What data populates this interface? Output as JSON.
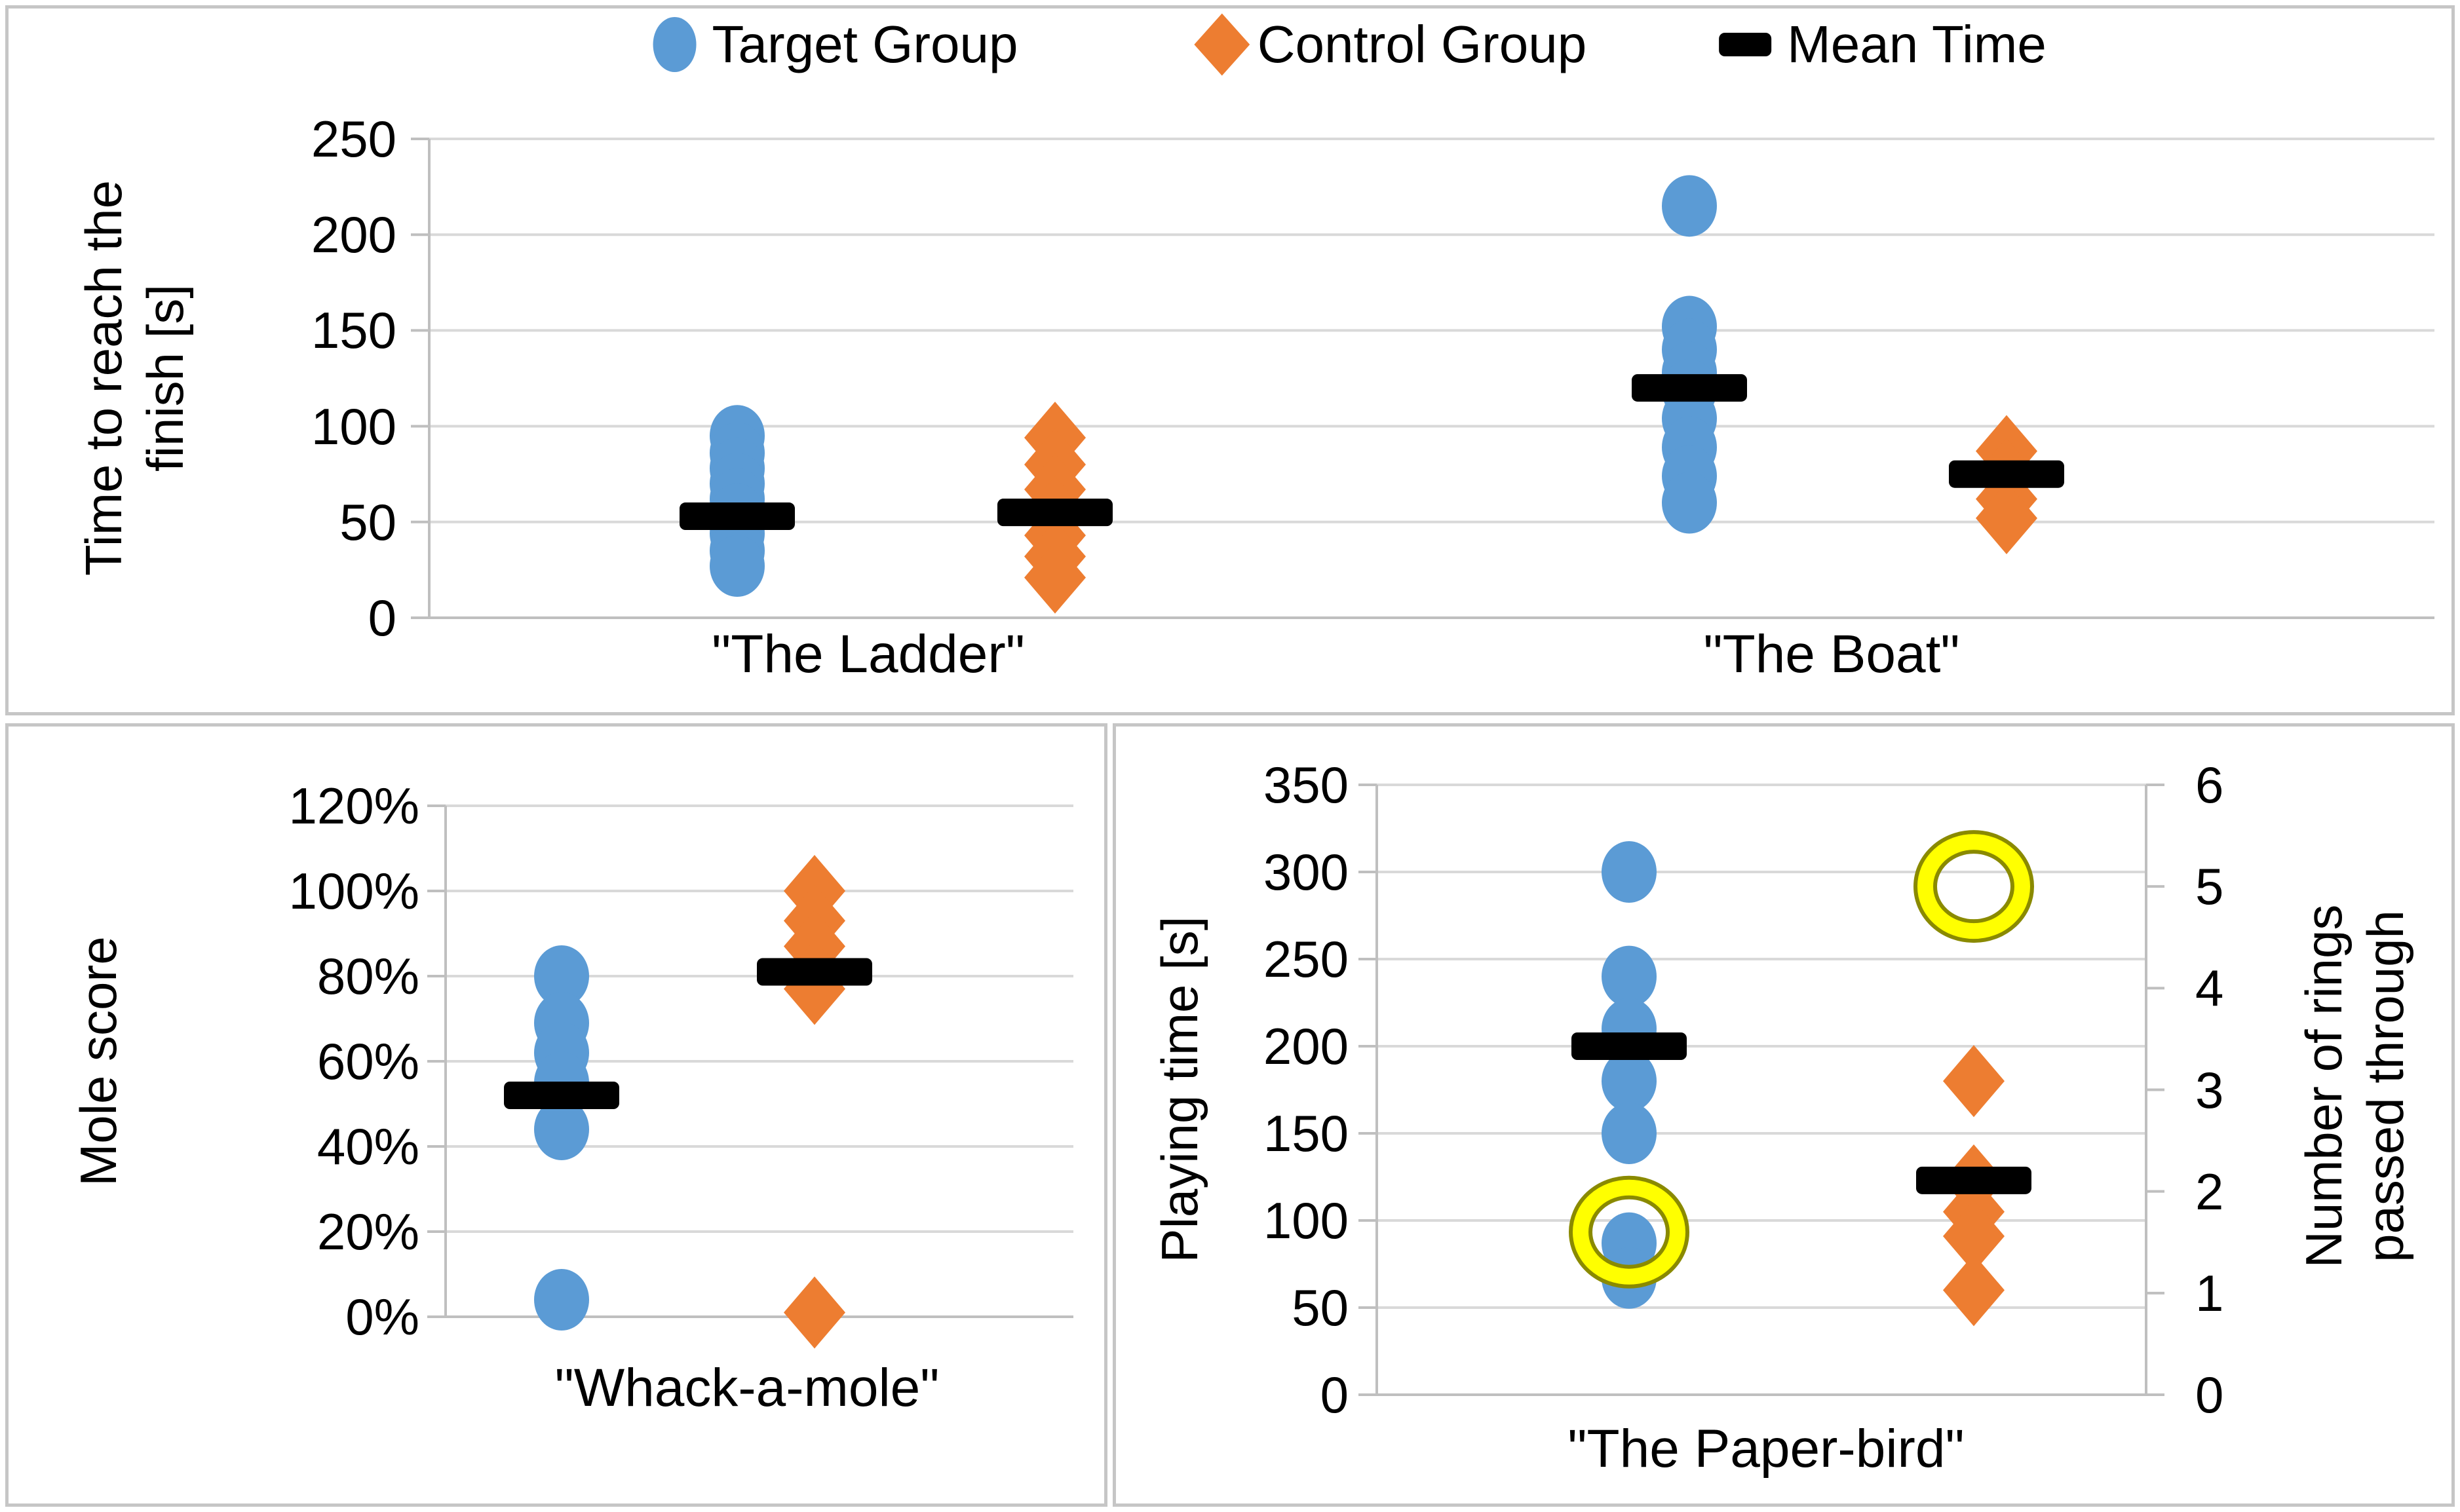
{
  "colors": {
    "target": "#5B9BD5",
    "control": "#ED7D31",
    "mean": "#000000",
    "ring_yellow": "#FFFF00",
    "ring_shade": "#8A8A00",
    "gridline": "#D9D9D9",
    "axis": "#BFBFBF",
    "panel_border": "#C6C6C6",
    "text": "#000000"
  },
  "legend": {
    "items": [
      {
        "label": "Target Group",
        "marker": "circle",
        "color": "#5B9BD5"
      },
      {
        "label": "Control Group",
        "marker": "diamond",
        "color": "#ED7D31"
      },
      {
        "label": "Mean Time",
        "marker": "dash",
        "color": "#000000"
      }
    ]
  },
  "chart_data": [
    {
      "type": "scatter",
      "title": "",
      "ylabel": "Time to reach the finish [s]",
      "ylabel_lines": [
        "Time to reach the",
        "finish [s]"
      ],
      "ylim": [
        0,
        250
      ],
      "yticks": [
        "250",
        "200",
        "150",
        "100",
        "50",
        "0"
      ],
      "ytick_values": [
        250,
        200,
        150,
        100,
        50,
        0
      ],
      "grid": true,
      "legend_position": "top-center",
      "categories": [
        "\"The Ladder\"",
        "\"The Boat\""
      ],
      "series": [
        {
          "name": "Target Group",
          "marker": "circle",
          "color": "#5B9BD5",
          "points": [
            [
              95,
              86,
              78,
              70,
              62,
              54,
              44,
              35,
              27
            ],
            [
              215,
              152,
              140,
              128,
              119,
              104,
              89,
              74,
              60
            ]
          ]
        },
        {
          "name": "Control Group",
          "marker": "diamond",
          "color": "#ED7D31",
          "points": [
            [
              94,
              80,
              67,
              55,
              43,
              32,
              21
            ],
            [
              87,
              75,
              62,
              52
            ]
          ]
        }
      ],
      "means": {
        "name": "Mean Time",
        "target": [
          53,
          120
        ],
        "control": [
          55,
          75
        ]
      }
    },
    {
      "type": "scatter",
      "title": "",
      "ylabel": "Mole score",
      "ylabel_lines": [
        "Mole score"
      ],
      "ylim": [
        0,
        120
      ],
      "unit": "percent",
      "yticks": [
        "120%",
        "100%",
        "80%",
        "60%",
        "40%",
        "20%",
        "0%"
      ],
      "ytick_values": [
        120,
        100,
        80,
        60,
        40,
        20,
        0
      ],
      "grid": true,
      "categories": [
        "\"Whack-a-mole\""
      ],
      "series": [
        {
          "name": "Target Group",
          "marker": "circle",
          "color": "#5B9BD5",
          "points": [
            [
              80,
              69,
              62,
              55,
              44,
              4
            ]
          ]
        },
        {
          "name": "Control Group",
          "marker": "diamond",
          "color": "#ED7D31",
          "points": [
            [
              100,
              93,
              87,
              80,
              77,
              1
            ]
          ]
        }
      ],
      "means": {
        "name": "Mean Time",
        "target": [
          52
        ],
        "control": [
          81
        ]
      }
    },
    {
      "type": "scatter",
      "title": "",
      "ylabel": "Playing time [s]",
      "ylabel_lines": [
        "Playing time [s]"
      ],
      "ylabel_right": "Number of rings passed through",
      "ylabel_right_lines": [
        "Number of rings",
        "passed through"
      ],
      "ylim": [
        0,
        350
      ],
      "yticks": [
        "350",
        "300",
        "250",
        "200",
        "150",
        "100",
        "50",
        "0"
      ],
      "ytick_values": [
        350,
        300,
        250,
        200,
        150,
        100,
        50,
        0
      ],
      "ylim_right": [
        0,
        6
      ],
      "yticks_right": [
        "6",
        "5",
        "4",
        "3",
        "2",
        "1",
        "0"
      ],
      "ytick_right_values": [
        6,
        5,
        4,
        3,
        2,
        1,
        0
      ],
      "grid": true,
      "categories": [
        "\"The Paper-bird\""
      ],
      "series": [
        {
          "name": "Target Group",
          "marker": "circle",
          "color": "#5B9BD5",
          "points": [
            [
              300,
              240,
              210,
              180,
              150,
              87,
              67
            ]
          ]
        },
        {
          "name": "Control Group",
          "marker": "diamond",
          "color": "#ED7D31",
          "points": [
            [
              180,
              123,
              105,
              91,
              60
            ]
          ]
        }
      ],
      "means": {
        "name": "Mean Time",
        "target": [
          200
        ],
        "control": [
          123
        ]
      },
      "rings": {
        "marker": "ring",
        "axis": "right",
        "target": [
          1.6
        ],
        "control": [
          5
        ]
      }
    }
  ]
}
